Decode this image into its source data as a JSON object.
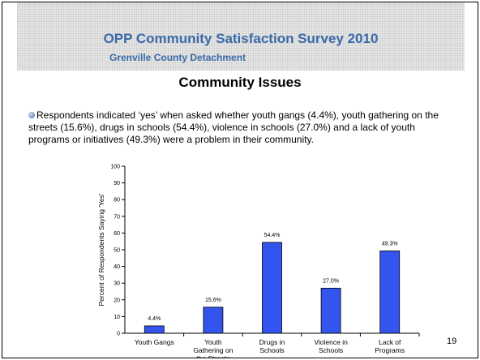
{
  "slide": {
    "title": "OPP Community Satisfaction Survey 2010",
    "subtitle": "Grenville County Detachment",
    "heading": "Community Issues",
    "bullet": "Respondents indicated ‘yes’ when asked whether youth gangs (4.4%), youth gathering on the streets (15.6%), drugs in schools (54.4%), violence in schools (27.0%) and a lack of youth programs or initiatives (49.3%) were a problem in their community.",
    "page_number": "19"
  },
  "colors": {
    "title": "#3a6aa8",
    "bar": "#3355ee"
  },
  "chart_data": {
    "type": "bar",
    "categories": [
      [
        "Youth Gangs"
      ],
      [
        "Youth",
        "Gathering on",
        "the Streets"
      ],
      [
        "Drugs in",
        "Schools"
      ],
      [
        "Violence in",
        "Schools"
      ],
      [
        "Lack of",
        "Programs"
      ]
    ],
    "values": [
      4.4,
      15.6,
      54.4,
      27.0,
      49.3
    ],
    "data_labels": [
      "4.4%",
      "15.6%",
      "54.4%",
      "27.0%",
      "49.3%"
    ],
    "ylabel": "Percent of Respondents Saying 'Yes'",
    "xlabel": "",
    "ylim": [
      0,
      100
    ],
    "yticks": [
      0,
      10,
      20,
      30,
      40,
      50,
      60,
      70,
      80,
      90,
      100
    ],
    "grid": false,
    "legend": false
  }
}
